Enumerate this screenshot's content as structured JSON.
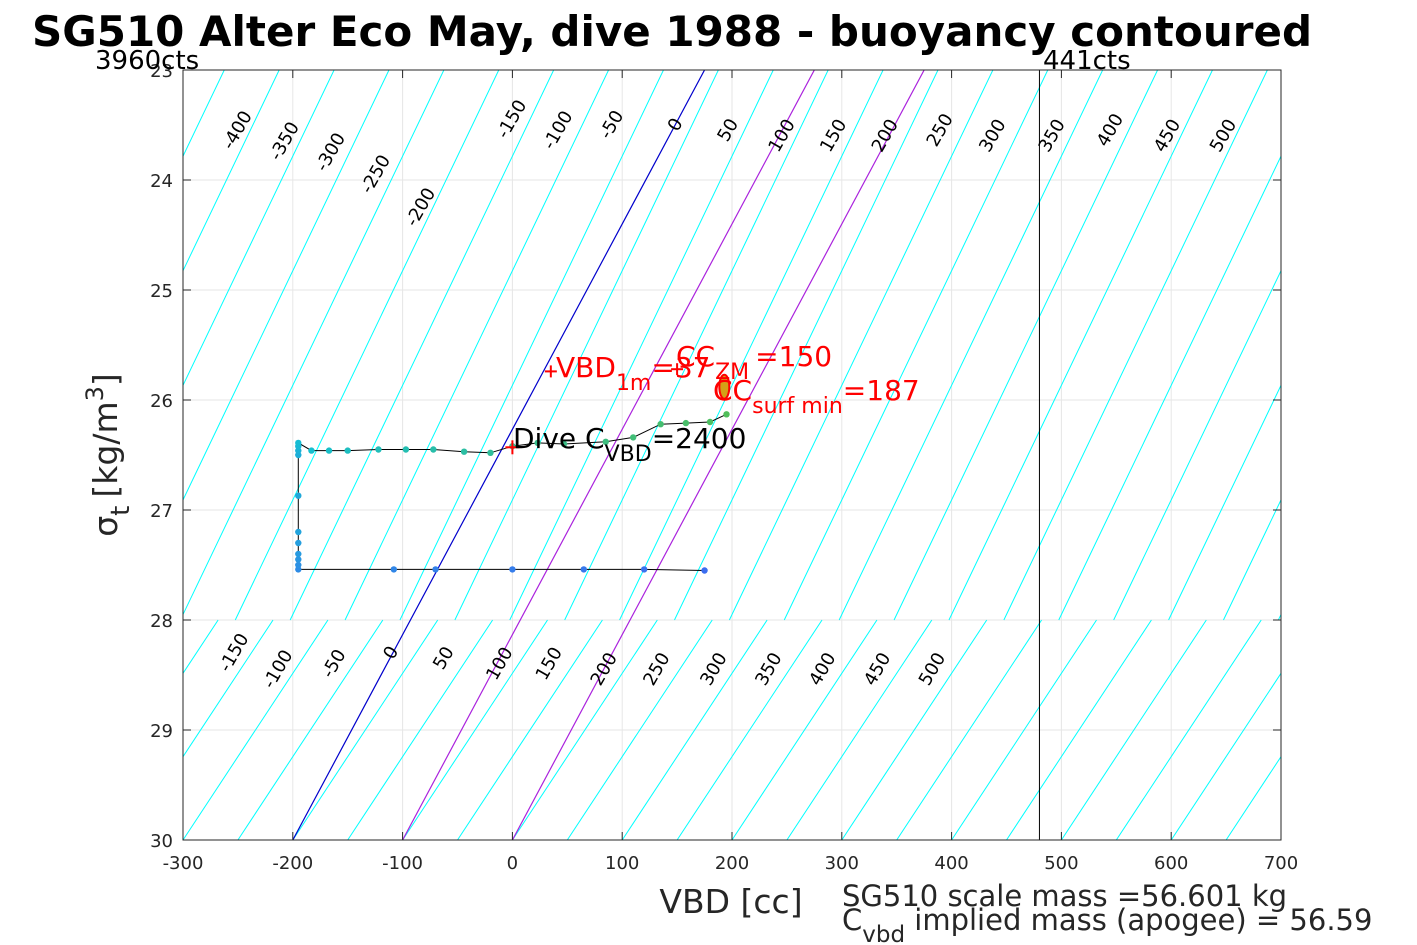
{
  "chart_data": {
    "type": "line",
    "title": "SG510 Alter Eco May, dive 1988 - buoyancy contoured",
    "xlabel": "VBD [cc]",
    "ylabel": {
      "sym": "σ",
      "sub": "t",
      "units": "[kg/m",
      "sup": "3",
      "close": "]"
    },
    "xlim": [
      -300,
      700
    ],
    "ylim": [
      23,
      30
    ],
    "y_reversed": true,
    "grid": true,
    "x_ticks": [
      -300,
      -200,
      -100,
      0,
      100,
      200,
      300,
      400,
      500,
      600,
      700
    ],
    "y_ticks": [
      23,
      24,
      25,
      26,
      27,
      28,
      29,
      30
    ],
    "contours": {
      "upper_set": {
        "color": "#00ffff",
        "anchor": {
          "x": -300,
          "y": 27.95
        },
        "slope_cc_per_sigma": 48
      },
      "lower_set": {
        "color": "#00ffff",
        "anchor": {
          "x": -200,
          "y": 30
        },
        "slope_cc_per_sigma": 66
      },
      "upper_labels": [
        {
          "text": "-400",
          "x": -250,
          "y": 23.55
        },
        {
          "text": "-350",
          "x": -207,
          "y": 23.65
        },
        {
          "text": "-300",
          "x": -165,
          "y": 23.75
        },
        {
          "text": "-250",
          "x": -124,
          "y": 23.95
        },
        {
          "text": "-200",
          "x": -83,
          "y": 24.25
        },
        {
          "text": "-150",
          "x": 0,
          "y": 23.45
        },
        {
          "text": "-100",
          "x": 42,
          "y": 23.55
        },
        {
          "text": "-50",
          "x": 91,
          "y": 23.5
        },
        {
          "text": "0",
          "x": 149,
          "y": 23.5
        },
        {
          "text": "50",
          "x": 197,
          "y": 23.55
        },
        {
          "text": "100",
          "x": 246,
          "y": 23.6
        },
        {
          "text": "150",
          "x": 293,
          "y": 23.6
        },
        {
          "text": "200",
          "x": 340,
          "y": 23.6
        },
        {
          "text": "250",
          "x": 390,
          "y": 23.55
        },
        {
          "text": "300",
          "x": 438,
          "y": 23.6
        },
        {
          "text": "350",
          "x": 492,
          "y": 23.6
        },
        {
          "text": "400",
          "x": 545,
          "y": 23.55
        },
        {
          "text": "450",
          "x": 597,
          "y": 23.6
        },
        {
          "text": "500",
          "x": 648,
          "y": 23.6
        }
      ],
      "lower_labels": [
        {
          "text": "-150",
          "x": -253,
          "y": 28.3
        },
        {
          "text": "-100",
          "x": -213,
          "y": 28.45
        },
        {
          "text": "-50",
          "x": -162,
          "y": 28.4
        },
        {
          "text": "0",
          "x": -110,
          "y": 28.3
        },
        {
          "text": "50",
          "x": -62,
          "y": 28.35
        },
        {
          "text": "100",
          "x": -11,
          "y": 28.4
        },
        {
          "text": "150",
          "x": 34,
          "y": 28.4
        },
        {
          "text": "200",
          "x": 84,
          "y": 28.45
        },
        {
          "text": "250",
          "x": 132,
          "y": 28.45
        },
        {
          "text": "300",
          "x": 184,
          "y": 28.45
        },
        {
          "text": "350",
          "x": 234,
          "y": 28.45
        },
        {
          "text": "400",
          "x": 283,
          "y": 28.45
        },
        {
          "text": "450",
          "x": 333,
          "y": 28.45
        },
        {
          "text": "500",
          "x": 383,
          "y": 28.45
        }
      ]
    },
    "zero_buoyancy_line": {
      "color": "#0000cc",
      "points": [
        {
          "x": -200,
          "y": 30
        },
        {
          "x": 175,
          "y": 23
        }
      ]
    },
    "magenta_lines": {
      "color": "#aa22dd",
      "lines": [
        {
          "points": [
            {
              "x": -100,
              "y": 30
            },
            {
              "x": 275,
              "y": 23
            }
          ]
        },
        {
          "points": [
            {
              "x": 0,
              "y": 30
            },
            {
              "x": 375,
              "y": 23
            }
          ]
        }
      ]
    },
    "vertical_line": {
      "x": 480,
      "color": "#000000"
    },
    "series": [
      {
        "kind": "dive_track",
        "x": [
          175,
          120,
          65,
          0,
          -70,
          -108,
          -195,
          -195,
          -195,
          -195,
          -195,
          -195,
          -195,
          -195,
          -195,
          -195,
          -195,
          -183,
          -167,
          -150,
          -122,
          -97,
          -72,
          -44,
          -20,
          0,
          23,
          47,
          85,
          110,
          135,
          158,
          180,
          195
        ],
        "y": [
          27.55,
          27.54,
          27.54,
          27.54,
          27.54,
          27.54,
          27.54,
          27.5,
          27.45,
          27.4,
          27.3,
          27.2,
          26.87,
          26.5,
          26.46,
          26.42,
          26.39,
          26.46,
          26.46,
          26.46,
          26.45,
          26.45,
          26.45,
          26.47,
          26.48,
          26.42,
          26.39,
          26.4,
          26.38,
          26.34,
          26.22,
          26.21,
          26.2,
          26.13
        ]
      }
    ],
    "markers": {
      "vbd_1m": {
        "x": 35,
        "y": 25.74
      },
      "cc_zm": {
        "x": 150,
        "y": 25.72
      },
      "cc_surf_min": {
        "x": 193,
        "y": 25.88
      },
      "dive_cvbd": {
        "x": 0,
        "y": 26.43
      }
    },
    "annotations": {
      "vbd_1m": {
        "main": "VBD",
        "sub": "1m",
        "tail": "=37"
      },
      "cc_zm": {
        "main": "CC",
        "sub": "ZM",
        "tail": "=150"
      },
      "cc_surf_min": {
        "main": "CC",
        "sub": "surf min",
        "tail": "=187"
      },
      "dive_cvbd": {
        "main": "Dive C",
        "sub": "VBD",
        "tail": "=2400"
      }
    },
    "cts_labels": {
      "left": "3960cts",
      "right": "441cts"
    },
    "footer": {
      "line1": "SG510 scale mass =56.601 kg",
      "line2_main": "C",
      "line2_sub": "vbd",
      "line2_tail": " implied mass (apogee) = 56.59"
    },
    "colors": {
      "annotation_red": "#ff0000",
      "track_line": "#000000",
      "contour_cyan": "#00ffff",
      "zero_line_blue": "#0000cc",
      "magenta": "#aa22dd",
      "surface_marker": "#d4a017"
    }
  }
}
